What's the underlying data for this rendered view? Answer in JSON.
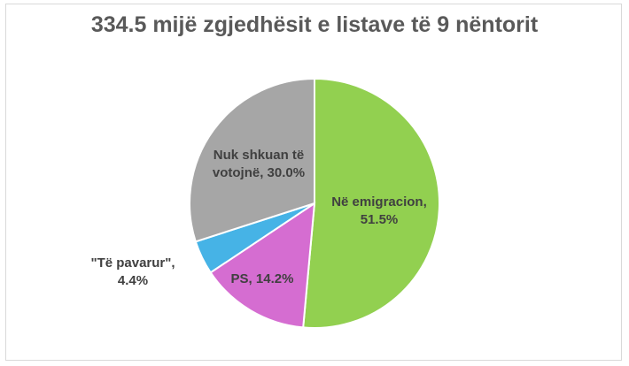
{
  "chart_data": {
    "type": "pie",
    "title": "334.5 mijë zgjedhësit e listave të 9 nëntorit",
    "slices": [
      {
        "label_lines": [
          "Në emigracion,",
          "51.5%"
        ],
        "value": 51.5,
        "color": "#92d050"
      },
      {
        "label_lines": [
          "PS, 14.2%"
        ],
        "value": 14.2,
        "color": "#d56dd1"
      },
      {
        "label_lines": [
          "\"Të pavarur\",",
          "4.4%"
        ],
        "value": 4.4,
        "color": "#46b3e6"
      },
      {
        "label_lines": [
          "Nuk shkuan të",
          "votojnë, 30.0%"
        ],
        "value": 30.0,
        "color": "#a6a6a6"
      }
    ]
  }
}
